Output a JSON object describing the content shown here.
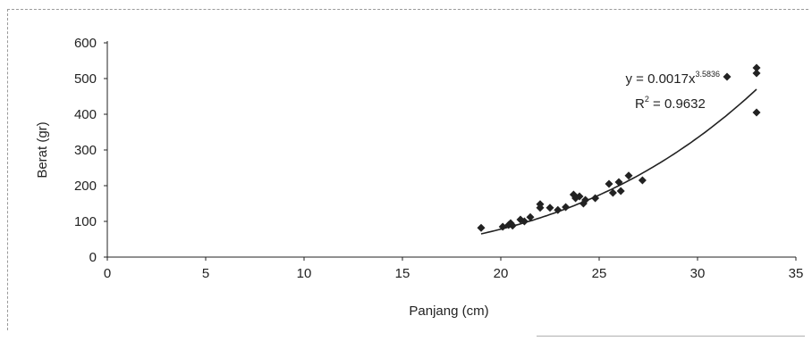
{
  "chart_data": {
    "type": "scatter",
    "xlabel": "Panjang (cm)",
    "ylabel": "Berat (gr)",
    "xlim": [
      0,
      35
    ],
    "ylim": [
      0,
      600
    ],
    "xticks": [
      0,
      5,
      10,
      15,
      20,
      25,
      30,
      35
    ],
    "yticks": [
      0,
      100,
      200,
      300,
      400,
      500,
      600
    ],
    "grid": false,
    "legend": "none",
    "marker_color": "#222222",
    "trendline": {
      "equation_prefix": "y = 0.0017x",
      "equation_exponent": "3.5836",
      "r2_prefix": "R",
      "r2_exponent": "2",
      "r2_value": " = 0.9632",
      "coef": 0.0017,
      "exponent": 3.5836
    },
    "series": [
      {
        "x": [
          19.0,
          20.1,
          20.4,
          20.5,
          20.6,
          21.0,
          21.2,
          21.5,
          22.0,
          22.0,
          22.5,
          22.9,
          23.3,
          23.7,
          23.8,
          24.0,
          24.2,
          24.3,
          24.8,
          25.5,
          25.7,
          26.0,
          26.1,
          26.5,
          27.2,
          31.5,
          33.0,
          33.0,
          33.0
        ],
        "y": [
          82,
          85,
          90,
          95,
          88,
          105,
          100,
          112,
          148,
          138,
          138,
          132,
          140,
          175,
          165,
          170,
          150,
          160,
          165,
          205,
          180,
          210,
          185,
          228,
          215,
          505,
          530,
          515,
          405
        ]
      }
    ]
  }
}
